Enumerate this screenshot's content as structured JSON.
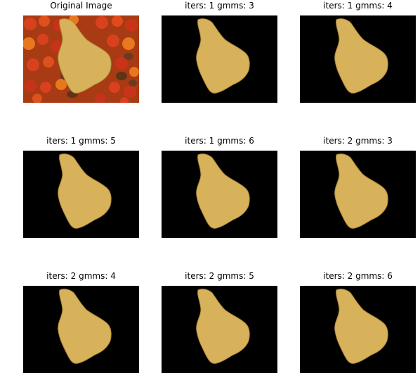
{
  "panels": [
    {
      "title": "Original Image",
      "background": "original"
    },
    {
      "title": "iters: 1 gmms: 3",
      "background": "mask"
    },
    {
      "title": "iters: 1 gmms: 4",
      "background": "mask"
    },
    {
      "title": "iters: 1 gmms: 5",
      "background": "mask"
    },
    {
      "title": "iters: 1 gmms: 6",
      "background": "mask"
    },
    {
      "title": "iters: 2 gmms: 3",
      "background": "mask"
    },
    {
      "title": "iters: 2 gmms: 4",
      "background": "mask"
    },
    {
      "title": "iters: 2 gmms: 5",
      "background": "mask"
    },
    {
      "title": "iters: 2 gmms: 6",
      "background": "mask"
    }
  ],
  "colors": {
    "mask_background": "#000000",
    "sponge_fill": "#d8b25a",
    "sponge_shadow": "#b08a3a",
    "scene_background": "#b4481a",
    "fruit_red": "#d9411e",
    "fruit_orange": "#e8781e",
    "pinecone": "#6b3b1e"
  }
}
